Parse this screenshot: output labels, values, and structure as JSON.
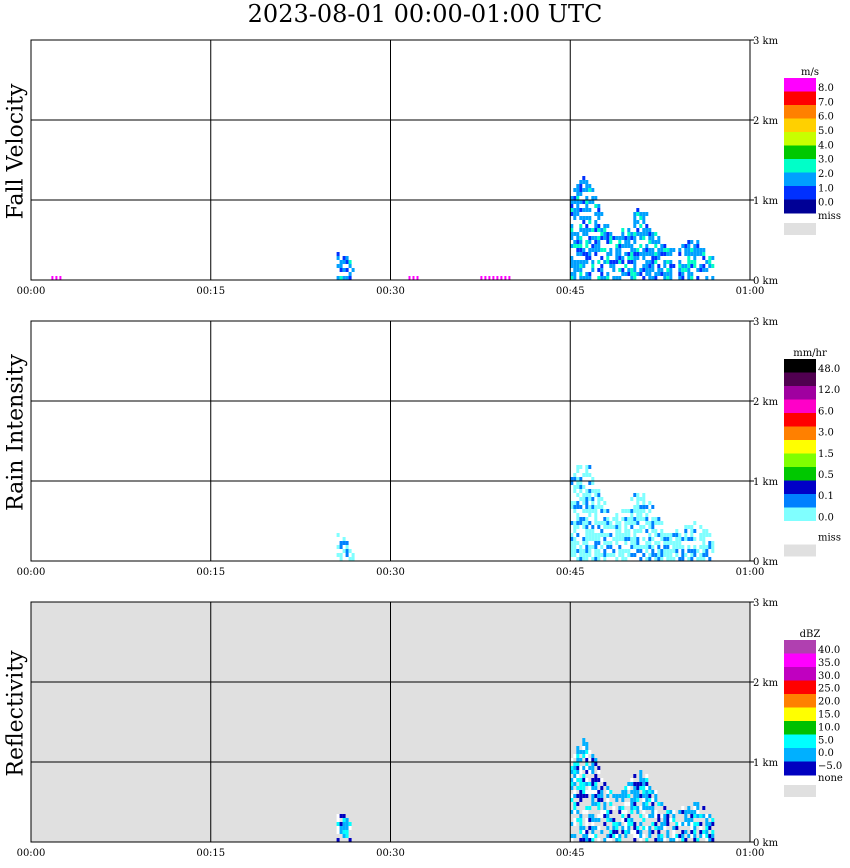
{
  "title": "2023-08-01   00:00-01:00 UTC",
  "x_ticks": [
    "00:00",
    "00:15",
    "00:30",
    "00:45",
    "01:00"
  ],
  "y_ticks": [
    "0 km",
    "1 km",
    "2 km",
    "3 km"
  ],
  "chart_data": [
    {
      "type": "heatmap",
      "title": "Fall Velocity",
      "xlabel": "",
      "ylabel": "Fall Velocity",
      "xlim": [
        "00:00",
        "01:00"
      ],
      "ylim_km": [
        0,
        3.2
      ],
      "background": "#ffffff",
      "legend": {
        "unit": "m/s",
        "placement": "right",
        "colors": [
          "#ff00ff",
          "#ff0000",
          "#ff8000",
          "#ffd000",
          "#c8ff00",
          "#00c800",
          "#00ffc8",
          "#00a0ff",
          "#0030ff",
          "#000096"
        ],
        "labels": [
          "8.0",
          "7.0",
          "6.0",
          "5.0",
          "4.0",
          "3.0",
          "2.0",
          "1.0",
          "0.0"
        ],
        "missing": {
          "label": "miss",
          "color": "#e0e0e0"
        }
      },
      "echoes": [
        {
          "t0": 25.5,
          "t1": 27.0,
          "top_km": 0.45,
          "value": "1.0-2.0 m/s"
        },
        {
          "t0": 45.0,
          "t1": 57.0,
          "top_km": 1.35,
          "value": "1.0-3.0 m/s"
        },
        {
          "t0": 1.7,
          "t1": 2.5,
          "top_km": 0.05,
          "value": "8.0 m/s"
        },
        {
          "t0": 31.5,
          "t1": 32.5,
          "top_km": 0.05,
          "value": "8.0 m/s"
        },
        {
          "t0": 37.5,
          "t1": 40.0,
          "top_km": 0.05,
          "value": "8.0 m/s"
        }
      ]
    },
    {
      "type": "heatmap",
      "title": "Rain Intensity",
      "xlabel": "",
      "ylabel": "Rain Intensity",
      "xlim": [
        "00:00",
        "01:00"
      ],
      "ylim_km": [
        0,
        3.2
      ],
      "background": "#ffffff",
      "legend": {
        "unit": "mm/hr",
        "placement": "right",
        "colors": [
          "#000000",
          "#500050",
          "#a000a0",
          "#ff00c8",
          "#ff0000",
          "#ff8000",
          "#ffff00",
          "#80ff00",
          "#00c800",
          "#0000c8",
          "#0080ff",
          "#80ffff",
          "#ffffff"
        ],
        "labels": [
          "48.0",
          "12.0",
          "6.0",
          "3.0",
          "1.5",
          "0.5",
          "0.1",
          "0.0"
        ],
        "missing": {
          "label": "miss",
          "color": "#e0e0e0"
        }
      },
      "echoes": [
        {
          "t0": 25.5,
          "t1": 27.0,
          "top_km": 0.4,
          "value": "0.1 mm/hr"
        },
        {
          "t0": 45.0,
          "t1": 57.0,
          "top_km": 1.3,
          "value": "0.1-0.5 mm/hr"
        }
      ]
    },
    {
      "type": "heatmap",
      "title": "Reflectivity",
      "xlabel": "",
      "ylabel": "Reflectivity",
      "xlim": [
        "00:00",
        "01:00"
      ],
      "ylim_km": [
        0,
        3.2
      ],
      "background": "#e0e0e0",
      "legend": {
        "unit": "dBZ",
        "placement": "right",
        "colors": [
          "#b040b0",
          "#ff00ff",
          "#c000c0",
          "#ff0000",
          "#ff8000",
          "#ffff00",
          "#00c000",
          "#00ffff",
          "#00b0ff",
          "#0000c0"
        ],
        "labels": [
          "40.0",
          "35.0",
          "30.0",
          "25.0",
          "20.0",
          "15.0",
          "10.0",
          "5.0",
          "0.0",
          "−5.0"
        ],
        "missing": {
          "label": "none",
          "color": "#e0e0e0"
        }
      },
      "echoes": [
        {
          "t0": 25.5,
          "t1": 27.0,
          "top_km": 0.45,
          "value": "5.0-10.0 dBZ"
        },
        {
          "t0": 45.0,
          "t1": 57.0,
          "top_km": 1.35,
          "value": "0.0-15.0 dBZ"
        }
      ]
    }
  ]
}
